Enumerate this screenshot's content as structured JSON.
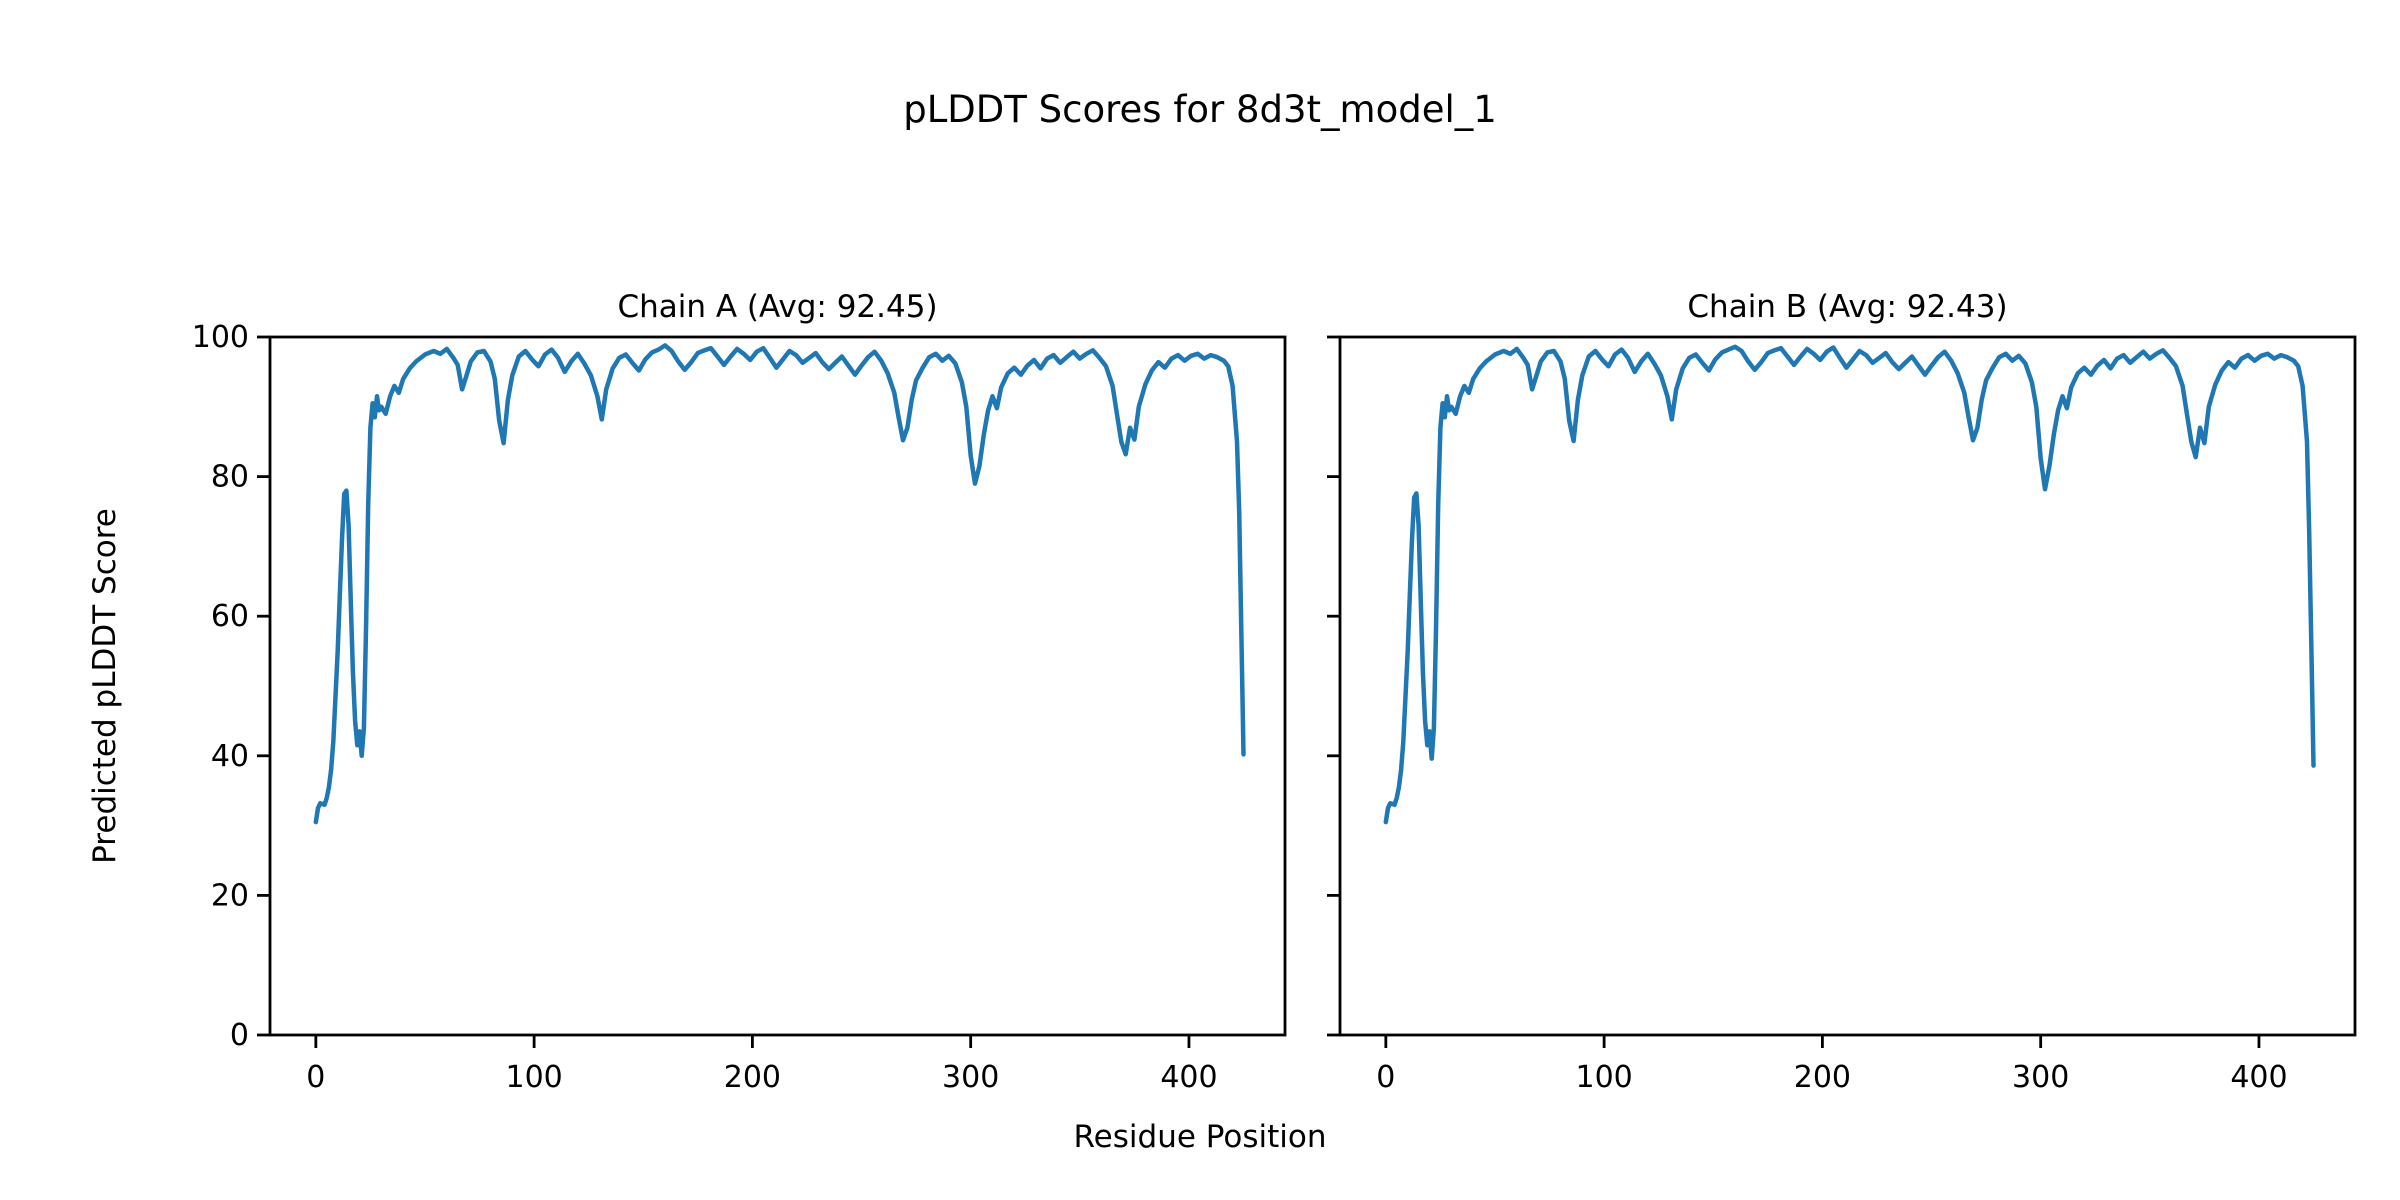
{
  "figure": {
    "title": "pLDDT Scores for 8d3t_model_1",
    "background": "#ffffff",
    "text_color": "#000000",
    "line_color": "#1f77b4"
  },
  "chart_data": {
    "type": "line",
    "title": "pLDDT Scores for 8d3t_model_1",
    "xlabel": "Residue Position",
    "ylabel": "Predicted pLDDT Score",
    "xlim": [
      -21,
      444
    ],
    "ylim": [
      0,
      100
    ],
    "xticks": [
      0,
      100,
      200,
      300,
      400
    ],
    "yticks": [
      0,
      20,
      40,
      60,
      80,
      100
    ],
    "grid": false,
    "legend": "none",
    "x": [
      0,
      1,
      2,
      4,
      5,
      6,
      7,
      8,
      10,
      11,
      12,
      13,
      14,
      15,
      16,
      17,
      18,
      19,
      20,
      21,
      22,
      23,
      24,
      25,
      26,
      27,
      28,
      29,
      30,
      32,
      34,
      36,
      38,
      40,
      43,
      46,
      50,
      54,
      57,
      60,
      63,
      65,
      67,
      69,
      71,
      74,
      77,
      80,
      82,
      84,
      86,
      88,
      90,
      93,
      96,
      99,
      102,
      105,
      108,
      111,
      114,
      117,
      120,
      123,
      126,
      129,
      131,
      133,
      136,
      139,
      142,
      145,
      148,
      151,
      154,
      157,
      160,
      163,
      166,
      169,
      172,
      175,
      178,
      181,
      184,
      187,
      190,
      193,
      196,
      199,
      202,
      205,
      208,
      211,
      214,
      217,
      220,
      223,
      226,
      229,
      232,
      235,
      238,
      241,
      244,
      247,
      250,
      253,
      256,
      259,
      262,
      265,
      267,
      269,
      271,
      273,
      275,
      278,
      281,
      284,
      287,
      290,
      293,
      296,
      298,
      300,
      302,
      304,
      306,
      308,
      310,
      312,
      314,
      317,
      320,
      323,
      326,
      329,
      332,
      335,
      338,
      341,
      344,
      347,
      350,
      353,
      356,
      359,
      362,
      365,
      367,
      369,
      371,
      373,
      375,
      377,
      380,
      383,
      386,
      389,
      392,
      395,
      398,
      401,
      404,
      407,
      410,
      413,
      416,
      418,
      420,
      422,
      423,
      424,
      425
    ],
    "subplots": [
      {
        "title": "Chain A (Avg: 92.45)",
        "series_name": "chain-a-plddt-line",
        "avg": 92.45,
        "values": [
          30.5,
          32.5,
          33.2,
          33.0,
          34.0,
          35.5,
          38.0,
          42.0,
          55.0,
          63.0,
          71.0,
          77.5,
          78.0,
          73.0,
          62.0,
          52.0,
          45.0,
          41.5,
          43.5,
          40.0,
          44.0,
          58.0,
          76.0,
          87.0,
          90.5,
          88.5,
          91.5,
          89.5,
          90.0,
          89.0,
          91.5,
          93.0,
          92.0,
          94.0,
          95.5,
          96.5,
          97.5,
          98.0,
          97.6,
          98.3,
          97.0,
          96.0,
          92.5,
          94.5,
          96.5,
          97.8,
          98.0,
          96.5,
          94.0,
          88.0,
          84.8,
          91.0,
          94.5,
          97.2,
          98.0,
          96.8,
          95.8,
          97.5,
          98.2,
          97.0,
          95.0,
          96.5,
          97.6,
          96.2,
          94.5,
          91.5,
          88.2,
          92.5,
          95.5,
          97.0,
          97.5,
          96.3,
          95.2,
          96.8,
          97.8,
          98.2,
          98.8,
          98.0,
          96.5,
          95.3,
          96.4,
          97.7,
          98.1,
          98.4,
          97.2,
          96.0,
          97.2,
          98.3,
          97.6,
          96.7,
          97.9,
          98.4,
          97.0,
          95.6,
          96.8,
          98.0,
          97.4,
          96.3,
          97.0,
          97.7,
          96.4,
          95.4,
          96.3,
          97.2,
          95.9,
          94.6,
          95.9,
          97.1,
          97.9,
          96.6,
          94.8,
          92.0,
          88.5,
          85.2,
          87.0,
          91.0,
          93.8,
          95.6,
          97.1,
          97.6,
          96.6,
          97.3,
          96.2,
          93.5,
          90.0,
          83.0,
          79.0,
          81.5,
          86.0,
          89.5,
          91.5,
          89.8,
          92.8,
          94.8,
          95.6,
          94.6,
          95.9,
          96.7,
          95.5,
          96.9,
          97.4,
          96.3,
          97.1,
          97.9,
          96.9,
          97.6,
          98.1,
          97.0,
          95.8,
          93.0,
          89.0,
          85.0,
          83.2,
          87.0,
          85.3,
          90.0,
          93.2,
          95.2,
          96.4,
          95.6,
          96.9,
          97.4,
          96.6,
          97.3,
          97.6,
          96.9,
          97.4,
          97.1,
          96.6,
          95.8,
          93.0,
          85.0,
          75.0,
          58.0,
          40.2
        ]
      },
      {
        "title": "Chain B (Avg: 92.43)",
        "series_name": "chain-b-plddt-line",
        "avg": 92.43,
        "values": [
          30.5,
          32.5,
          33.2,
          33.0,
          34.0,
          35.5,
          38.0,
          42.0,
          55.0,
          63.0,
          71.0,
          77.0,
          77.6,
          73.0,
          62.0,
          52.0,
          45.0,
          41.5,
          43.5,
          39.6,
          44.0,
          58.0,
          76.0,
          87.0,
          90.5,
          88.5,
          91.5,
          89.5,
          90.0,
          89.0,
          91.5,
          93.0,
          92.0,
          94.0,
          95.5,
          96.5,
          97.5,
          98.0,
          97.6,
          98.3,
          97.0,
          96.0,
          92.5,
          94.5,
          96.5,
          97.8,
          98.0,
          96.5,
          94.0,
          88.0,
          85.1,
          91.0,
          94.5,
          97.2,
          98.0,
          96.8,
          95.8,
          97.5,
          98.2,
          97.0,
          95.0,
          96.5,
          97.6,
          96.2,
          94.5,
          91.5,
          88.2,
          92.5,
          95.5,
          97.0,
          97.5,
          96.3,
          95.2,
          96.8,
          97.8,
          98.2,
          98.6,
          98.0,
          96.5,
          95.3,
          96.4,
          97.7,
          98.1,
          98.4,
          97.2,
          96.0,
          97.2,
          98.3,
          97.6,
          96.7,
          97.9,
          98.5,
          97.0,
          95.6,
          96.8,
          98.0,
          97.4,
          96.3,
          97.0,
          97.7,
          96.4,
          95.4,
          96.3,
          97.2,
          95.9,
          94.6,
          95.9,
          97.1,
          97.9,
          96.6,
          94.8,
          92.0,
          88.5,
          85.2,
          87.0,
          91.0,
          93.8,
          95.6,
          97.1,
          97.6,
          96.6,
          97.3,
          96.2,
          93.5,
          90.0,
          82.6,
          78.2,
          81.5,
          86.0,
          89.5,
          91.5,
          89.8,
          92.8,
          94.8,
          95.6,
          94.6,
          95.9,
          96.7,
          95.5,
          96.9,
          97.4,
          96.3,
          97.1,
          97.9,
          96.9,
          97.6,
          98.1,
          97.0,
          95.8,
          93.0,
          89.0,
          85.0,
          82.8,
          87.0,
          84.8,
          90.0,
          93.2,
          95.2,
          96.4,
          95.6,
          96.9,
          97.4,
          96.6,
          97.3,
          97.6,
          96.9,
          97.4,
          97.1,
          96.6,
          95.8,
          93.0,
          85.0,
          72.0,
          56.0,
          38.6
        ]
      }
    ]
  }
}
